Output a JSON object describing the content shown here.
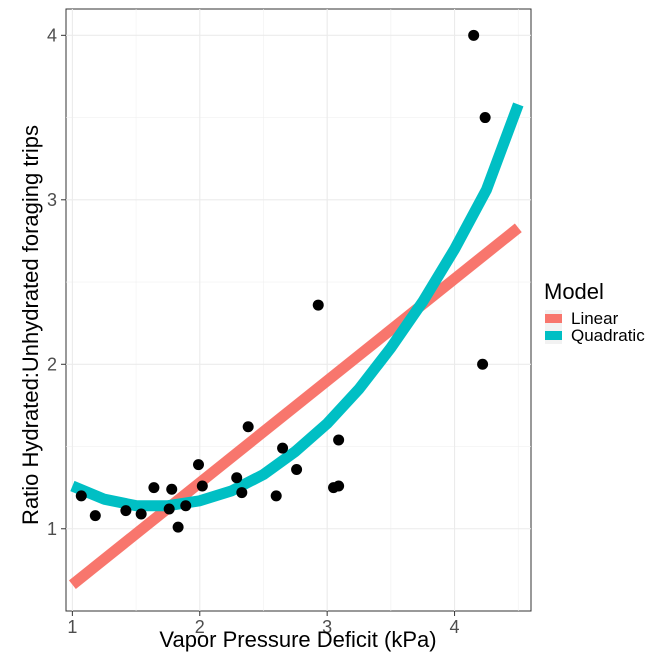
{
  "chart_data": {
    "type": "scatter",
    "xlabel": "Vapor Pressure Deficit (kPa)",
    "ylabel": "Ratio Hydrated:Unhydrated foraging trips",
    "xlim": [
      0.95,
      4.6
    ],
    "ylim": [
      0.5,
      4.16
    ],
    "x_ticks": [
      1,
      2,
      3,
      4
    ],
    "y_ticks": [
      1,
      2,
      3,
      4
    ],
    "grid": true,
    "legend": {
      "title": "Model",
      "placement": "right",
      "entries": [
        {
          "label": "Linear",
          "color": "#F8766D"
        },
        {
          "label": "Quadratic",
          "color": "#00BFC4"
        }
      ]
    },
    "points": {
      "x": [
        1.07,
        1.18,
        1.42,
        1.54,
        1.64,
        1.76,
        1.78,
        1.83,
        1.89,
        1.99,
        2.02,
        2.29,
        2.33,
        2.38,
        2.6,
        2.65,
        2.76,
        2.93,
        3.05,
        3.09,
        3.09,
        4.15,
        4.22,
        4.24
      ],
      "y": [
        1.2,
        1.08,
        1.11,
        1.09,
        1.25,
        1.12,
        1.24,
        1.01,
        1.14,
        1.39,
        1.26,
        1.31,
        1.22,
        1.62,
        1.2,
        1.49,
        1.36,
        2.36,
        1.25,
        1.54,
        1.26,
        4.0,
        2.0,
        3.5
      ]
    },
    "series": [
      {
        "name": "Linear",
        "color": "#F8766D",
        "x": [
          1.0,
          4.5
        ],
        "y": [
          0.66,
          2.83
        ]
      },
      {
        "name": "Quadratic",
        "color": "#00BFC4",
        "x": [
          1.0,
          1.25,
          1.5,
          1.75,
          2.0,
          2.25,
          2.5,
          2.75,
          3.0,
          3.25,
          3.5,
          3.75,
          4.0,
          4.25,
          4.5
        ],
        "y": [
          1.26,
          1.18,
          1.14,
          1.14,
          1.17,
          1.23,
          1.33,
          1.47,
          1.64,
          1.85,
          2.1,
          2.38,
          2.7,
          3.06,
          3.58
        ]
      }
    ]
  }
}
